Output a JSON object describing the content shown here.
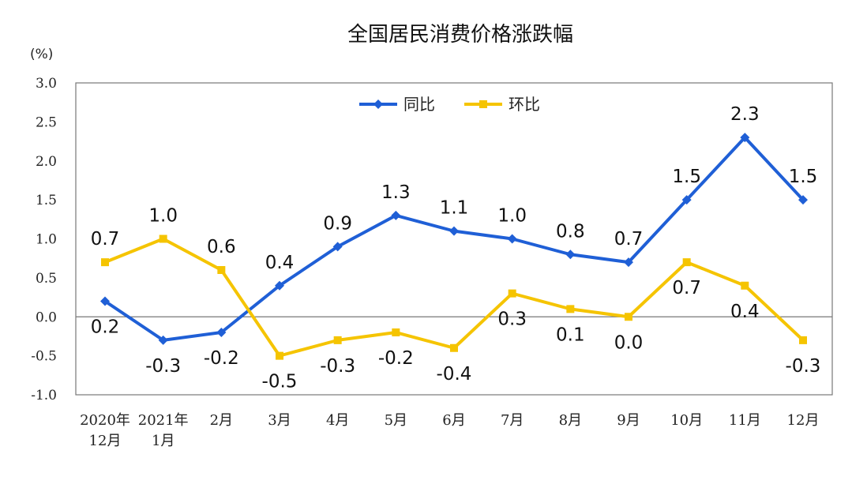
{
  "unit_label": "(%)",
  "chart_data": {
    "type": "line",
    "title": "全国居民消费价格涨跌幅",
    "xlabel": "",
    "ylabel": "(%)",
    "ylim": [
      -1.0,
      3.0
    ],
    "yticks": [
      "3.0",
      "2.5",
      "2.0",
      "1.5",
      "1.0",
      "0.5",
      "0.0",
      "-0.5",
      "-1.0"
    ],
    "categories": [
      [
        "2020年",
        "12月"
      ],
      [
        "2021年",
        "1月"
      ],
      [
        "2月"
      ],
      [
        "3月"
      ],
      [
        "4月"
      ],
      [
        "5月"
      ],
      [
        "6月"
      ],
      [
        "7月"
      ],
      [
        "8月"
      ],
      [
        "9月"
      ],
      [
        "10月"
      ],
      [
        "11月"
      ],
      [
        "12月"
      ]
    ],
    "series": [
      {
        "name": "同比",
        "color": "#1f5fd6",
        "marker": "diamond",
        "values": [
          0.2,
          -0.3,
          -0.2,
          0.4,
          0.9,
          1.3,
          1.1,
          1.0,
          0.8,
          0.7,
          1.5,
          2.3,
          1.5
        ],
        "labels": [
          "0.2",
          "-0.3",
          "-0.2",
          "0.4",
          "0.9",
          "1.3",
          "1.1",
          "1.0",
          "0.8",
          "0.7",
          "1.5",
          "2.3",
          "1.5"
        ],
        "label_pos": [
          "below",
          "below",
          "below",
          "above",
          "above",
          "above",
          "above",
          "above",
          "above",
          "above",
          "above",
          "above",
          "above"
        ]
      },
      {
        "name": "环比",
        "color": "#f5c400",
        "marker": "square",
        "values": [
          0.7,
          1.0,
          0.6,
          -0.5,
          -0.3,
          -0.2,
          -0.4,
          0.3,
          0.1,
          0.0,
          0.7,
          0.4,
          -0.3
        ],
        "labels": [
          "0.7",
          "1.0",
          "0.6",
          "-0.5",
          "-0.3",
          "-0.2",
          "-0.4",
          "0.3",
          "0.1",
          "0.0",
          "0.7",
          "0.4",
          "-0.3"
        ],
        "label_pos": [
          "above",
          "above",
          "above",
          "below",
          "below",
          "below",
          "below",
          "below",
          "below",
          "below",
          "below",
          "below",
          "below"
        ]
      }
    ],
    "legend": "top-center",
    "grid": false
  }
}
